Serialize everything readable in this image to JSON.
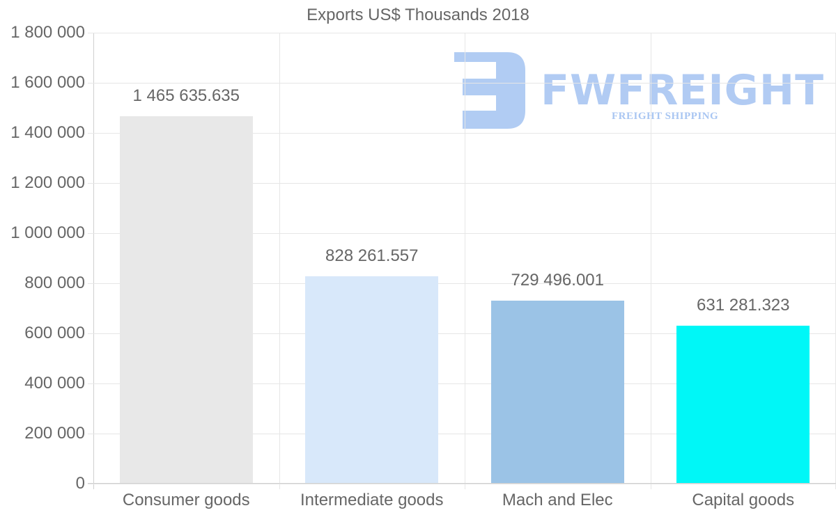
{
  "chart_data": {
    "type": "bar",
    "title": "Exports US$ Thousands 2018",
    "categories": [
      "Consumer goods",
      "Intermediate goods",
      "Mach and Elec",
      "Capital goods"
    ],
    "values": [
      1465635.635,
      828261.557,
      729496.001,
      631281.323
    ],
    "value_labels": [
      "1 465 635.635",
      "828 261.557",
      "729 496.001",
      "631 281.323"
    ],
    "colors": [
      "#e8e8e8",
      "#d8e8fa",
      "#9bc3e6",
      "#00f7f7"
    ],
    "xlabel": "",
    "ylabel": "",
    "ylim": [
      0,
      1800000
    ],
    "yticks": [
      0,
      200000,
      400000,
      600000,
      800000,
      1000000,
      1200000,
      1400000,
      1600000,
      1800000
    ],
    "ytick_labels": [
      "0",
      "200 000",
      "400 000",
      "600 000",
      "800 000",
      "1 000 000",
      "1 200 000",
      "1 400 000",
      "1 600 000",
      "1 800 000"
    ],
    "grid": true,
    "legend": "none"
  },
  "watermark": {
    "brand": "FWFREIGHT",
    "tagline": "FREIGHT SHIPPING",
    "color": "#a9c6f2"
  }
}
